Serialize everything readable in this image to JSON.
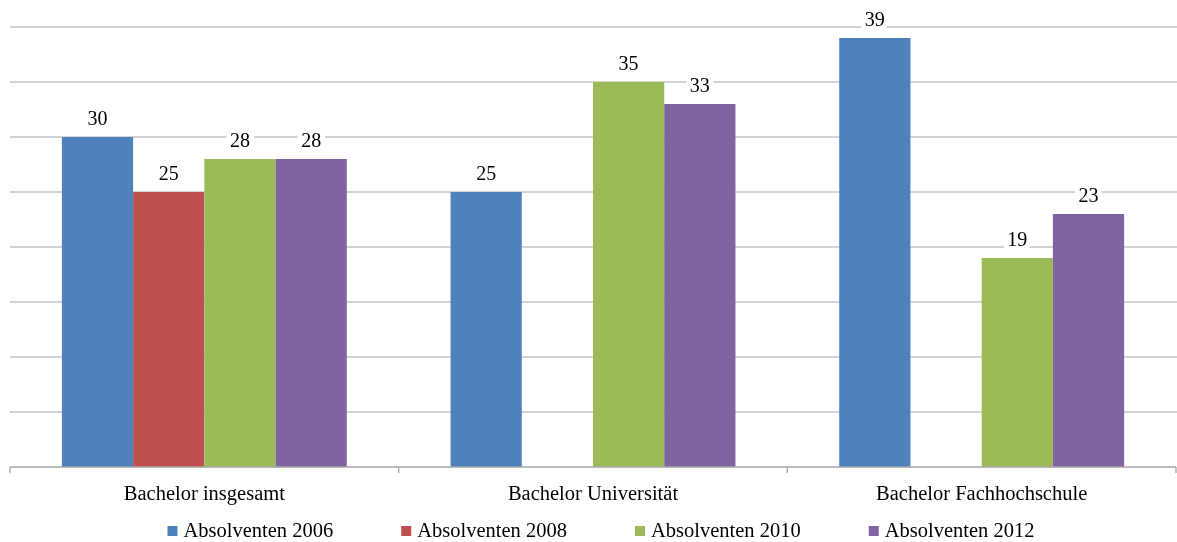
{
  "chart_data": {
    "type": "bar",
    "categories": [
      "Bachelor insgesamt",
      "Bachelor Universität",
      "Bachelor Fachhochschule"
    ],
    "series": [
      {
        "name": "Absolventen 2006",
        "color": "#4f81bd",
        "values": [
          30,
          25,
          39
        ]
      },
      {
        "name": "Absolventen 2008",
        "color": "#c0504d",
        "values": [
          25,
          null,
          null
        ]
      },
      {
        "name": "Absolventen 2010",
        "color": "#9bbb59",
        "values": [
          28,
          35,
          19
        ]
      },
      {
        "name": "Absolventen 2012",
        "color": "#8064a2",
        "values": [
          28,
          33,
          23
        ]
      }
    ],
    "ylim": [
      0,
      40
    ],
    "yticks": [
      {
        "value": 0,
        "label": null
      },
      {
        "value": 5,
        "label": null
      },
      {
        "value": 10,
        "label": null
      },
      {
        "value": 15,
        "label": null
      },
      {
        "value": 20,
        "label": null
      },
      {
        "value": 25,
        "label": null
      },
      {
        "value": 30,
        "label": null
      },
      {
        "value": 35,
        "label": null
      },
      {
        "value": 40,
        "label": null
      }
    ],
    "tick_labels": "x",
    "grid": "y",
    "legend": "bottom",
    "data_labels": true
  }
}
